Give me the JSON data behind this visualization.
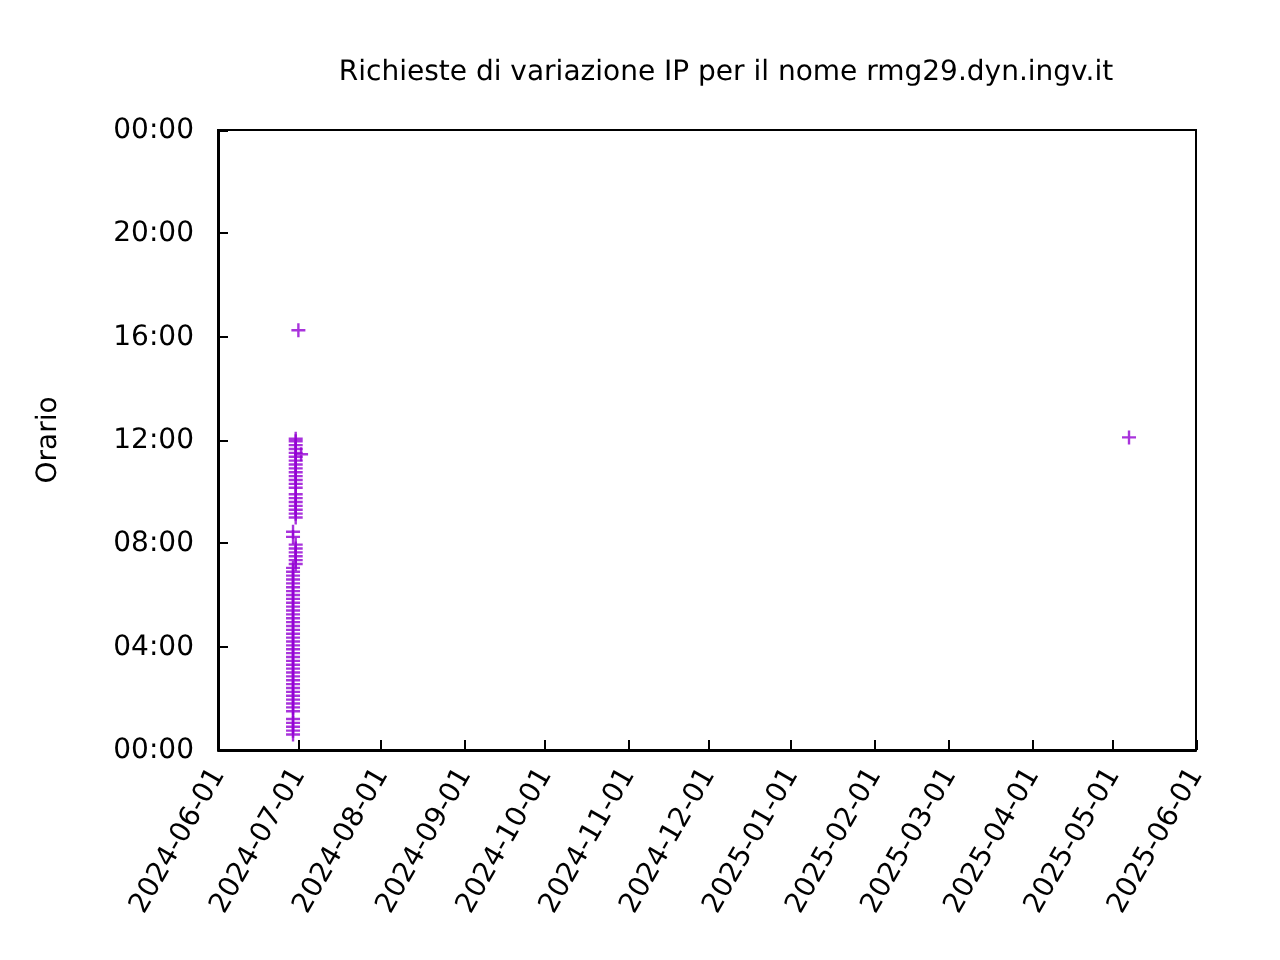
{
  "chart_data": {
    "type": "scatter",
    "title": "Richieste di variazione IP per il nome rmg29.dyn.ingv.it",
    "ylabel": "Orario",
    "marker": "cross",
    "grid": false,
    "xlim": [
      "2024-06-01",
      "2025-06-01"
    ],
    "xticks": [
      "2024-06-01",
      "2024-07-01",
      "2024-08-01",
      "2024-09-01",
      "2024-10-01",
      "2024-11-01",
      "2024-12-01",
      "2025-01-01",
      "2025-02-01",
      "2025-03-01",
      "2025-04-01",
      "2025-05-01",
      "2025-06-01"
    ],
    "ylim": [
      0,
      24
    ],
    "yticks": [
      {
        "value": 0,
        "label": "00:00"
      },
      {
        "value": 4,
        "label": "04:00"
      },
      {
        "value": 8,
        "label": "08:00"
      },
      {
        "value": 12,
        "label": "12:00"
      },
      {
        "value": 16,
        "label": "16:00"
      },
      {
        "value": 20,
        "label": "20:00"
      },
      {
        "value": 24,
        "label": "00:00"
      }
    ],
    "series": [
      {
        "color": "#9400d3",
        "x": [
          "2024-06-29",
          "2024-06-29",
          "2024-06-29",
          "2024-06-29",
          "2024-06-29",
          "2024-06-29",
          "2024-06-29",
          "2024-06-29",
          "2024-06-29",
          "2024-06-29",
          "2024-06-29",
          "2024-06-29",
          "2024-06-29",
          "2024-06-29",
          "2024-06-29",
          "2024-06-29",
          "2024-06-29",
          "2024-06-29",
          "2024-06-29",
          "2024-06-29",
          "2024-06-29",
          "2024-06-29",
          "2024-06-29",
          "2024-06-29",
          "2024-06-29",
          "2024-06-29",
          "2024-06-29",
          "2024-06-29",
          "2024-06-29",
          "2024-06-29",
          "2024-06-29",
          "2024-06-29",
          "2024-06-29",
          "2024-06-29",
          "2024-06-29",
          "2024-06-29",
          "2024-06-29",
          "2024-06-29",
          "2024-06-29",
          "2024-06-29",
          "2024-06-29",
          "2024-06-29",
          "2024-06-30",
          "2024-06-30",
          "2024-06-30",
          "2024-06-30",
          "2024-06-30",
          "2024-06-30",
          "2024-06-29",
          "2024-06-29",
          "2024-06-30",
          "2024-06-30",
          "2024-06-30",
          "2024-06-30",
          "2024-06-30",
          "2024-06-30",
          "2024-06-30",
          "2024-06-30",
          "2024-06-30",
          "2024-06-30",
          "2024-06-30",
          "2024-06-30",
          "2024-06-30",
          "2024-06-30",
          "2024-06-30",
          "2024-06-30",
          "2024-06-30",
          "2024-06-30",
          "2024-06-30",
          "2024-06-30",
          "2024-06-30",
          "2024-06-29",
          "2024-07-02",
          "2024-07-01",
          "2025-05-07"
        ],
        "values": [
          0.75,
          0.9,
          1.05,
          1.2,
          1.5,
          1.65,
          1.8,
          1.95,
          2.1,
          2.25,
          2.4,
          2.55,
          2.7,
          2.85,
          3.0,
          3.15,
          3.3,
          3.45,
          3.6,
          3.75,
          3.9,
          4.05,
          4.2,
          4.35,
          4.5,
          4.65,
          4.8,
          4.95,
          5.1,
          5.25,
          5.4,
          5.55,
          5.7,
          5.85,
          6.0,
          6.15,
          6.3,
          6.45,
          6.6,
          6.75,
          6.9,
          7.05,
          7.2,
          7.35,
          7.5,
          7.65,
          7.8,
          7.95,
          8.25,
          8.45,
          9.0,
          9.15,
          9.3,
          9.45,
          9.6,
          9.75,
          9.9,
          10.15,
          10.3,
          10.45,
          10.6,
          10.75,
          10.9,
          11.05,
          11.2,
          11.35,
          11.5,
          11.65,
          11.8,
          11.95,
          12.05,
          0.6,
          11.45,
          16.25,
          12.1
        ]
      }
    ]
  }
}
